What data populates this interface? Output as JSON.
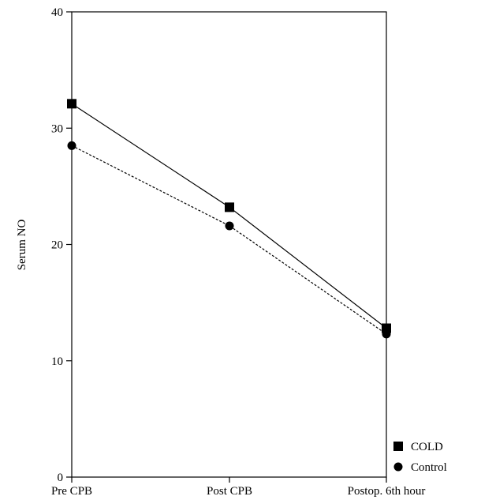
{
  "chart_data": {
    "type": "line",
    "title": "",
    "xlabel": "",
    "ylabel": "Serum NO",
    "categories": [
      "Pre CPB",
      "Post CPB",
      "Postop. 6th hour"
    ],
    "ylim": [
      0,
      40
    ],
    "yticks": [
      0,
      10,
      20,
      30,
      40
    ],
    "grid": false,
    "legend_position": "bottom-right",
    "series": [
      {
        "name": "COLD",
        "marker": "square",
        "line_style": "solid",
        "color": "#000000",
        "values": [
          32.1,
          23.2,
          12.8
        ]
      },
      {
        "name": "Control",
        "marker": "circle",
        "line_style": "dashed",
        "color": "#000000",
        "values": [
          28.5,
          21.6,
          12.3
        ]
      }
    ]
  }
}
